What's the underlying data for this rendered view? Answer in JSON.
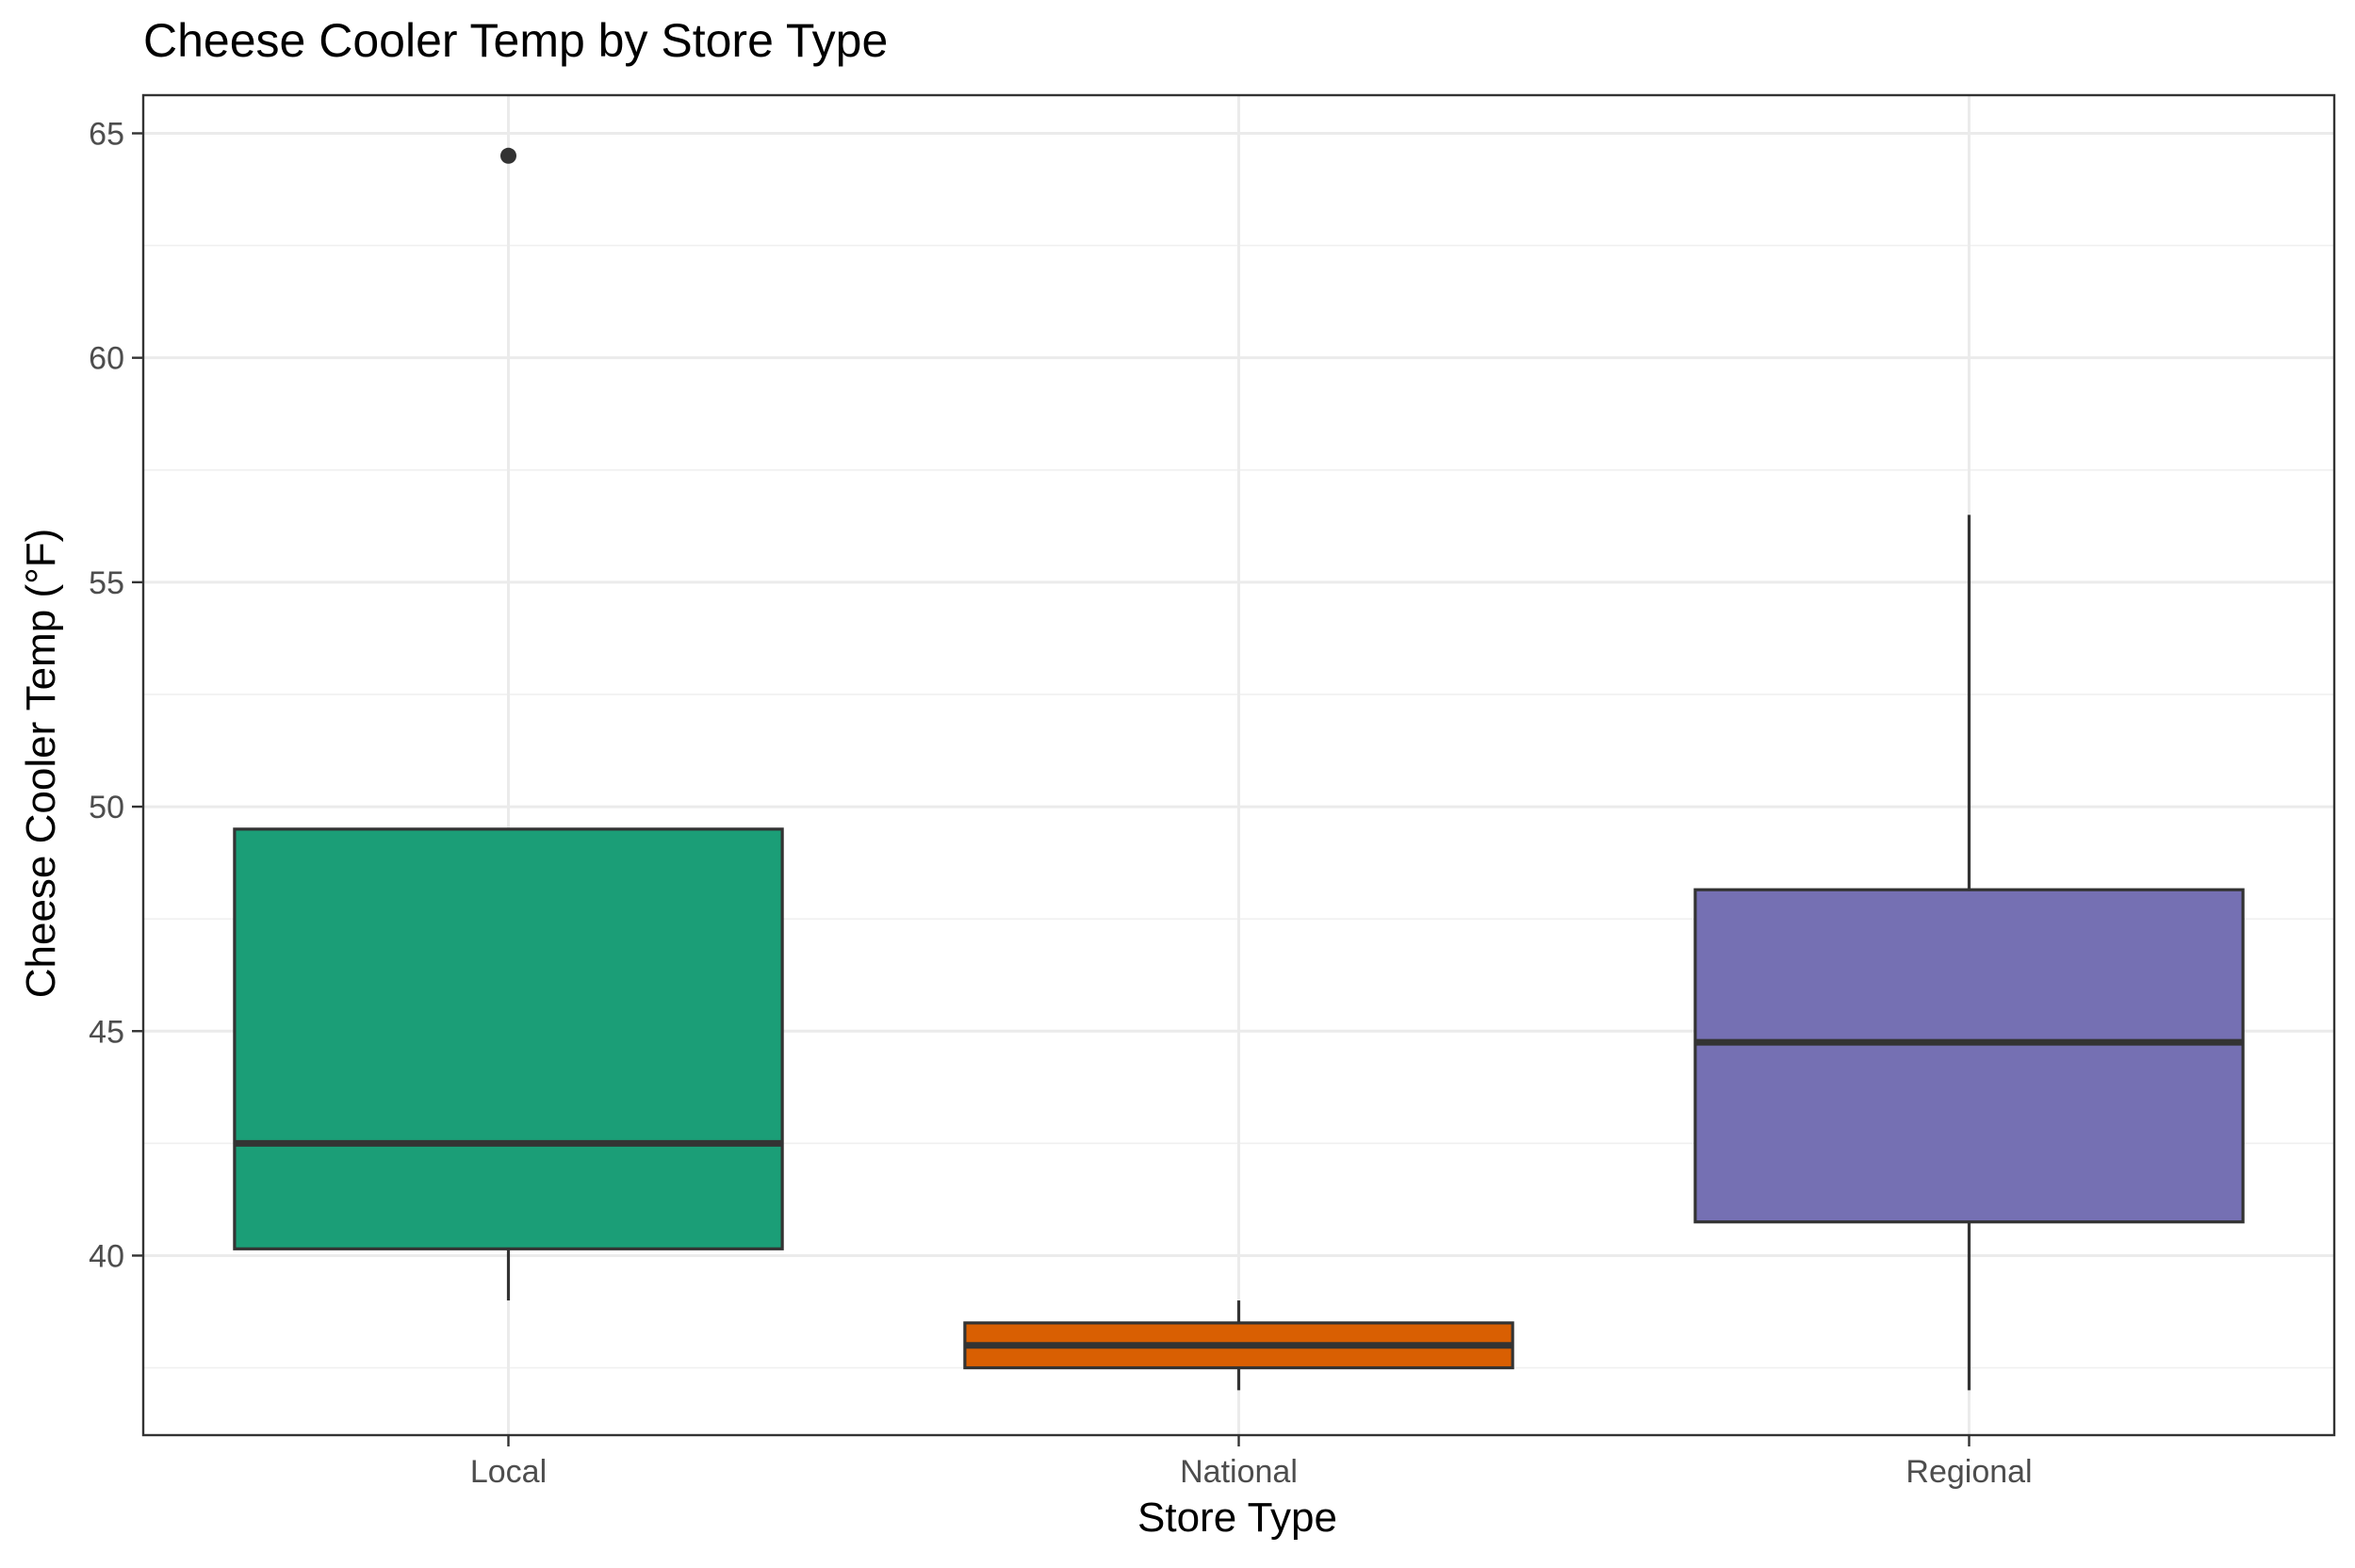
{
  "chart_data": {
    "type": "boxplot",
    "title": "Cheese Cooler Temp by Store Type",
    "xlabel": "Store Type",
    "ylabel": "Cheese Cooler Temp (°F)",
    "ylim": [
      36,
      65.85
    ],
    "y_ticks": [
      40,
      45,
      50,
      55,
      60,
      65
    ],
    "y_minor_ticks": [
      37.5,
      42.5,
      47.5,
      52.5,
      57.5,
      62.5
    ],
    "grid": true,
    "legend": "none",
    "categories": [
      "Local",
      "National",
      "Regional"
    ],
    "boxes": [
      {
        "category": "Local",
        "min": 39.0,
        "q1": 40.15,
        "median": 42.5,
        "q3": 49.5,
        "max": 49.5,
        "outliers": [
          64.5
        ],
        "color": "#1b9e77"
      },
      {
        "category": "National",
        "min": 37.0,
        "q1": 37.5,
        "median": 38.0,
        "q3": 38.5,
        "max": 39.0,
        "outliers": [],
        "color": "#d95f02"
      },
      {
        "category": "Regional",
        "min": 37.0,
        "q1": 40.75,
        "median": 44.75,
        "q3": 48.15,
        "max": 56.5,
        "outliers": [],
        "color": "#7570b3"
      }
    ]
  }
}
